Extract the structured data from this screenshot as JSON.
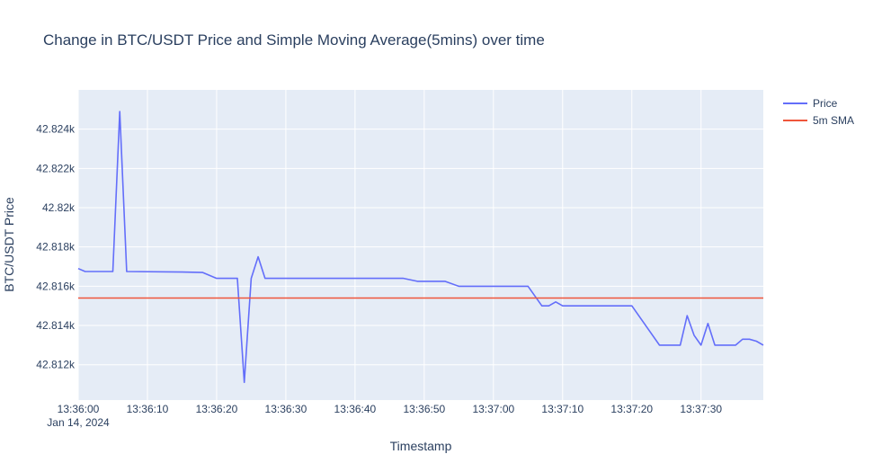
{
  "chart_data": {
    "type": "line",
    "title": "Change in BTC/USDT Price and Simple Moving Average(5mins) over time",
    "xlabel": "Timestamp",
    "ylabel": "BTC/USDT Price",
    "x_date_label": "Jan 14, 2024",
    "x_range": [
      "13:36:00",
      "13:37:39"
    ],
    "ylim": [
      42810.2,
      42826.0
    ],
    "x_ticks": [
      "13:36:00",
      "13:36:10",
      "13:36:20",
      "13:36:30",
      "13:36:40",
      "13:36:50",
      "13:37:00",
      "13:37:10",
      "13:37:20",
      "13:37:30"
    ],
    "y_ticks": [
      {
        "value": 42812,
        "label": "42.812k"
      },
      {
        "value": 42814,
        "label": "42.814k"
      },
      {
        "value": 42816,
        "label": "42.816k"
      },
      {
        "value": 42818,
        "label": "42.818k"
      },
      {
        "value": 42820,
        "label": "42.82k"
      },
      {
        "value": 42822,
        "label": "42.822k"
      },
      {
        "value": 42824,
        "label": "42.824k"
      }
    ],
    "grid": true,
    "legend_position": "top-right",
    "series": [
      {
        "name": "Price",
        "color": "#636efa",
        "points": [
          [
            "13:36:00",
            42816.9
          ],
          [
            "13:36:01",
            42816.75
          ],
          [
            "13:36:05",
            42816.75
          ],
          [
            "13:36:06",
            42824.9
          ],
          [
            "13:36:07",
            42816.75
          ],
          [
            "13:36:15",
            42816.72
          ],
          [
            "13:36:18",
            42816.7
          ],
          [
            "13:36:20",
            42816.4
          ],
          [
            "13:36:23",
            42816.4
          ],
          [
            "13:36:24",
            42811.1
          ],
          [
            "13:36:25",
            42816.4
          ],
          [
            "13:36:26",
            42817.5
          ],
          [
            "13:36:27",
            42816.4
          ],
          [
            "13:36:47",
            42816.4
          ],
          [
            "13:36:49",
            42816.25
          ],
          [
            "13:36:53",
            42816.25
          ],
          [
            "13:36:55",
            42816.0
          ],
          [
            "13:37:05",
            42816.0
          ],
          [
            "13:37:07",
            42815.0
          ],
          [
            "13:37:08",
            42815.0
          ],
          [
            "13:37:09",
            42815.2
          ],
          [
            "13:37:10",
            42815.0
          ],
          [
            "13:37:20",
            42815.0
          ],
          [
            "13:37:24",
            42813.0
          ],
          [
            "13:37:27",
            42813.0
          ],
          [
            "13:37:28",
            42814.5
          ],
          [
            "13:37:29",
            42813.5
          ],
          [
            "13:37:30",
            42813.0
          ],
          [
            "13:37:31",
            42814.1
          ],
          [
            "13:37:32",
            42813.0
          ],
          [
            "13:37:35",
            42813.0
          ],
          [
            "13:37:36",
            42813.3
          ],
          [
            "13:37:37",
            42813.3
          ],
          [
            "13:37:38",
            42813.2
          ],
          [
            "13:37:39",
            42813.0
          ]
        ]
      },
      {
        "name": "5m SMA",
        "color": "#ef553b",
        "points": [
          [
            "13:36:00",
            42815.4
          ],
          [
            "13:37:39",
            42815.4
          ]
        ]
      }
    ]
  }
}
